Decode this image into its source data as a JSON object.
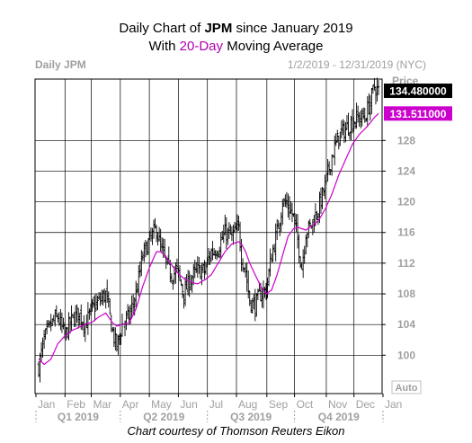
{
  "title": {
    "line1_prefix": "Daily Chart of ",
    "ticker": "JPM",
    "line1_suffix": " since January 2019",
    "line2_prefix": "With ",
    "line2_highlight": "20-Day",
    "line2_suffix": " Moving Average"
  },
  "caption": "Chart courtesy of Thomson Reuters Eikon",
  "chart_data": {
    "type": "bar",
    "panel_label": "Daily JPM",
    "date_range": "1/2/2019 - 12/31/2019 (NYC)",
    "price_header": "Price",
    "auto_label": "Auto",
    "colors": {
      "ohlc": "#000000",
      "moving_average": "#cc00cc",
      "last_price_box": "#000000",
      "ma_box": "#cc00cc"
    },
    "ylim": [
      95,
      136
    ],
    "y_ticks": [
      100,
      104,
      108,
      112,
      116,
      120,
      124,
      128
    ],
    "last_price": {
      "value": 134.48,
      "label": "134.480000"
    },
    "ma_value": {
      "value": 131.511,
      "label": "131.511000"
    },
    "x_months": [
      "Jan",
      "Feb",
      "Mar",
      "Apr",
      "May",
      "Jun",
      "Jul",
      "Aug",
      "Sep",
      "Oct",
      "Nov",
      "Dec",
      "Jan"
    ],
    "x_quarters": [
      "Q1 2019",
      "Q2 2019",
      "Q3 2019",
      "Q4 2019"
    ],
    "close_anchors": [
      [
        0,
        98.5
      ],
      [
        4,
        102
      ],
      [
        9,
        104
      ],
      [
        14,
        105
      ],
      [
        19,
        102.5
      ],
      [
        24,
        104.5
      ],
      [
        29,
        105.5
      ],
      [
        34,
        104
      ],
      [
        39,
        106
      ],
      [
        44,
        107
      ],
      [
        49,
        108
      ],
      [
        54,
        103
      ],
      [
        57,
        101
      ],
      [
        61,
        104
      ],
      [
        66,
        105
      ],
      [
        71,
        108
      ],
      [
        76,
        113
      ],
      [
        81,
        115
      ],
      [
        86,
        116.5
      ],
      [
        89,
        114
      ],
      [
        93,
        112
      ],
      [
        97,
        110.5
      ],
      [
        101,
        111
      ],
      [
        106,
        108
      ],
      [
        111,
        110
      ],
      [
        116,
        111
      ],
      [
        121,
        111
      ],
      [
        126,
        113.5
      ],
      [
        131,
        114
      ],
      [
        136,
        116
      ],
      [
        141,
        115.5
      ],
      [
        146,
        116.5
      ],
      [
        148,
        113
      ],
      [
        151,
        111
      ],
      [
        154,
        107
      ],
      [
        158,
        106.5
      ],
      [
        162,
        108
      ],
      [
        166,
        108.5
      ],
      [
        170,
        113
      ],
      [
        174,
        116
      ],
      [
        178,
        120
      ],
      [
        182,
        119.5
      ],
      [
        186,
        118
      ],
      [
        189,
        115
      ],
      [
        192,
        111.5
      ],
      [
        195,
        116
      ],
      [
        199,
        117
      ],
      [
        204,
        119
      ],
      [
        209,
        122
      ],
      [
        214,
        126
      ],
      [
        219,
        128.5
      ],
      [
        224,
        129.5
      ],
      [
        229,
        130.5
      ],
      [
        234,
        131
      ],
      [
        238,
        131
      ],
      [
        242,
        133
      ],
      [
        245,
        135
      ],
      [
        248,
        134.48
      ]
    ],
    "ma_anchors": [
      [
        0,
        99.5
      ],
      [
        4,
        98.8
      ],
      [
        9,
        99.5
      ],
      [
        14,
        101.5
      ],
      [
        19,
        102.5
      ],
      [
        24,
        103.2
      ],
      [
        29,
        103.6
      ],
      [
        34,
        104
      ],
      [
        39,
        104.3
      ],
      [
        44,
        105
      ],
      [
        49,
        105.5
      ],
      [
        54,
        104.2
      ],
      [
        57,
        103.8
      ],
      [
        61,
        104
      ],
      [
        66,
        104.2
      ],
      [
        71,
        106
      ],
      [
        76,
        109
      ],
      [
        81,
        111.5
      ],
      [
        86,
        113.5
      ],
      [
        89,
        113.5
      ],
      [
        93,
        112.8
      ],
      [
        97,
        111.8
      ],
      [
        101,
        110.8
      ],
      [
        106,
        110
      ],
      [
        111,
        109.5
      ],
      [
        116,
        109.3
      ],
      [
        121,
        109.8
      ],
      [
        126,
        110.5
      ],
      [
        131,
        112
      ],
      [
        136,
        113.5
      ],
      [
        141,
        114.5
      ],
      [
        146,
        114.8
      ],
      [
        148,
        114.5
      ],
      [
        151,
        113.5
      ],
      [
        154,
        112
      ],
      [
        158,
        110.5
      ],
      [
        162,
        109
      ],
      [
        166,
        108
      ],
      [
        170,
        108.5
      ],
      [
        174,
        110.5
      ],
      [
        178,
        113
      ],
      [
        182,
        115.5
      ],
      [
        186,
        116.5
      ],
      [
        189,
        116.7
      ],
      [
        192,
        116.5
      ],
      [
        195,
        116.3
      ],
      [
        199,
        116.8
      ],
      [
        204,
        117.5
      ],
      [
        209,
        119
      ],
      [
        214,
        121
      ],
      [
        219,
        123.5
      ],
      [
        224,
        125.5
      ],
      [
        229,
        127.5
      ],
      [
        234,
        128.8
      ],
      [
        238,
        129.5
      ],
      [
        242,
        130.3
      ],
      [
        245,
        131
      ],
      [
        248,
        131.511
      ]
    ]
  }
}
